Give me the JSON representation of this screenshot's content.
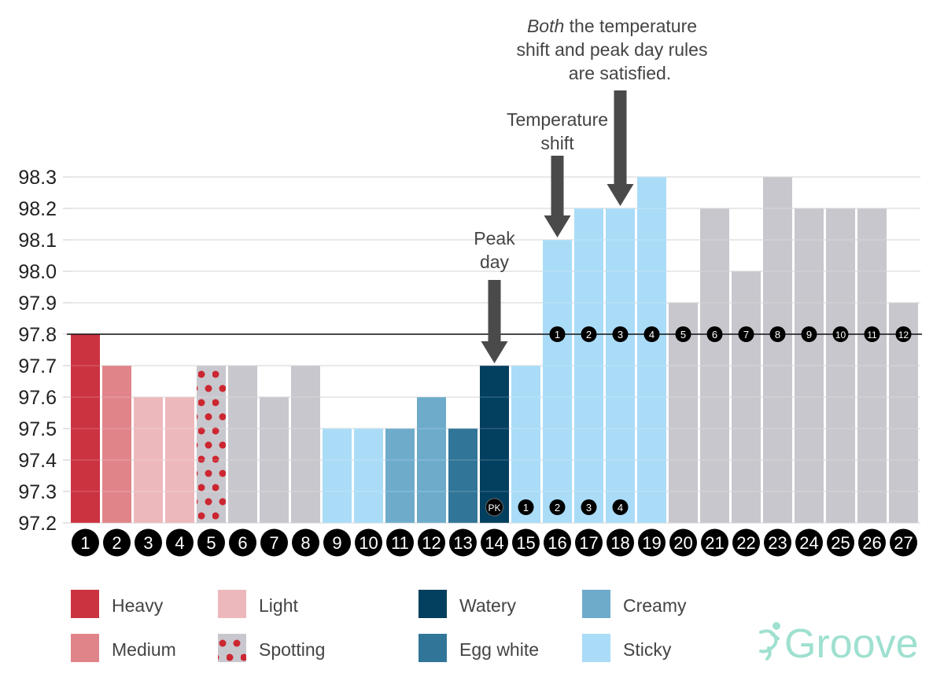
{
  "chart_data": {
    "type": "bar",
    "categories": [
      "1",
      "2",
      "3",
      "4",
      "5",
      "6",
      "7",
      "8",
      "9",
      "10",
      "11",
      "12",
      "13",
      "14",
      "15",
      "16",
      "17",
      "18",
      "19",
      "20",
      "21",
      "22",
      "23",
      "24",
      "25",
      "26",
      "27"
    ],
    "values": [
      97.8,
      97.7,
      97.6,
      97.6,
      97.7,
      97.7,
      97.6,
      97.7,
      97.5,
      97.5,
      97.5,
      97.6,
      97.5,
      97.7,
      97.7,
      98.1,
      98.2,
      98.2,
      98.3,
      97.9,
      98.2,
      98.0,
      98.3,
      98.2,
      98.2,
      98.2,
      97.9
    ],
    "bar_type": [
      "heavy",
      "medium",
      "light",
      "light",
      "spotting",
      "none",
      "none",
      "none",
      "sticky",
      "sticky",
      "creamy",
      "creamy",
      "egg_white",
      "watery",
      "sticky",
      "sticky",
      "sticky",
      "sticky",
      "sticky",
      "none",
      "none",
      "none",
      "none",
      "none",
      "none",
      "none",
      "none"
    ],
    "ylim": [
      97.2,
      98.3
    ],
    "yticks": [
      "97.2",
      "97.3",
      "97.4",
      "97.5",
      "97.6",
      "97.7",
      "97.8",
      "97.9",
      "98.0",
      "98.1",
      "98.2",
      "98.3"
    ],
    "grid": true,
    "reference_line": 97.8,
    "coverline_counts": [
      {
        "day": 16,
        "label": "1"
      },
      {
        "day": 17,
        "label": "2"
      },
      {
        "day": 18,
        "label": "3"
      },
      {
        "day": 19,
        "label": "4"
      },
      {
        "day": 20,
        "label": "5"
      },
      {
        "day": 21,
        "label": "6"
      },
      {
        "day": 22,
        "label": "7"
      },
      {
        "day": 23,
        "label": "8"
      },
      {
        "day": 24,
        "label": "9"
      },
      {
        "day": 25,
        "label": "10"
      },
      {
        "day": 26,
        "label": "11"
      },
      {
        "day": 27,
        "label": "12"
      }
    ],
    "peak_counts": [
      {
        "day": 14,
        "label": "PK"
      },
      {
        "day": 15,
        "label": "1"
      },
      {
        "day": 16,
        "label": "2"
      },
      {
        "day": 17,
        "label": "3"
      },
      {
        "day": 18,
        "label": "4"
      }
    ],
    "annotations": [
      {
        "day": 14,
        "lines": [
          "Peak",
          "day"
        ]
      },
      {
        "day": 16,
        "lines": [
          "Temperature",
          "shift"
        ]
      },
      {
        "day": 18,
        "lines_italic_prefix": "Both",
        "lines": [
          " the temperature",
          "shift and peak day rules",
          "are satisfied."
        ]
      }
    ],
    "legend": [
      {
        "key": "heavy",
        "label": "Heavy"
      },
      {
        "key": "medium",
        "label": "Medium"
      },
      {
        "key": "light",
        "label": "Light"
      },
      {
        "key": "spotting",
        "label": "Spotting"
      },
      {
        "key": "watery",
        "label": "Watery"
      },
      {
        "key": "egg_white",
        "label": "Egg white"
      },
      {
        "key": "creamy",
        "label": "Creamy"
      },
      {
        "key": "sticky",
        "label": "Sticky"
      }
    ],
    "legend_placement": "bottom",
    "colors": {
      "heavy": "#cc3341",
      "medium": "#e0848a",
      "light": "#edb8bc",
      "spotting": "#c8c7cd",
      "spotting_dot": "#cc2630",
      "none": "#c8c7cd",
      "sticky": "#aadcf7",
      "creamy": "#6eabcb",
      "egg_white": "#317699",
      "watery": "#033f5f"
    }
  },
  "logo": {
    "text": "Groove",
    "color": "#9fe0d0"
  }
}
